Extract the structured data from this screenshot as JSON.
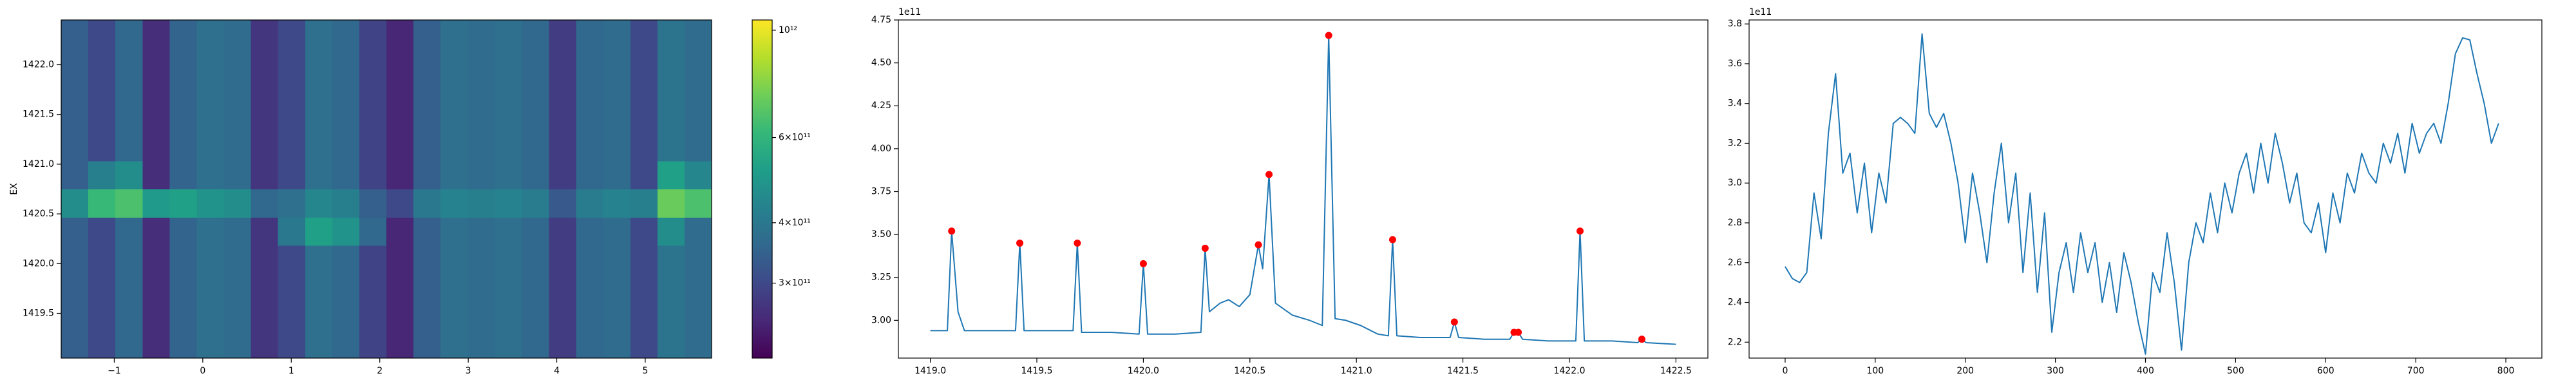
{
  "chart_data": [
    {
      "type": "heatmap",
      "ylabel": "EX",
      "xlim": [
        -1.6,
        5.75
      ],
      "ylim": [
        1419.05,
        1422.45
      ],
      "xticks": [
        {
          "value": -1,
          "label": "−1"
        },
        0,
        1,
        2,
        3,
        4,
        5
      ],
      "yticks": [
        1419.5,
        {
          "value": 1420,
          "label": "1420.0"
        },
        1420.5,
        {
          "value": 1421,
          "label": "1421.0"
        },
        1421.5,
        {
          "value": 1422,
          "label": "1422.0"
        }
      ],
      "colormap": [
        "#440154",
        "#482878",
        "#3e4989",
        "#31688e",
        "#26828e",
        "#1f9e89",
        "#35b779",
        "#6ece58",
        "#b5de2b",
        "#fde725"
      ],
      "colorbar": {
        "lim": [
          210000000000.0,
          1050000000000.0
        ],
        "scale": "log",
        "ticks": [
          {
            "value": 300000000000.0,
            "label": "3×10¹¹"
          },
          {
            "value": 400000000000.0,
            "label": "4×10¹¹"
          },
          {
            "value": 600000000000.0,
            "label": "6×10¹¹"
          },
          {
            "value": 1000000000000.0,
            "label": "10¹²"
          }
        ]
      },
      "z": [
        [
          340000000000.0,
          300000000000.0,
          360000000000.0,
          260000000000.0,
          350000000000.0,
          380000000000.0,
          370000000000.0,
          270000000000.0,
          300000000000.0,
          380000000000.0,
          360000000000.0,
          290000000000.0,
          250000000000.0,
          340000000000.0,
          380000000000.0,
          370000000000.0,
          380000000000.0,
          360000000000.0,
          280000000000.0,
          360000000000.0,
          370000000000.0,
          300000000000.0,
          390000000000.0,
          370000000000.0
        ],
        [
          340000000000.0,
          300000000000.0,
          360000000000.0,
          260000000000.0,
          350000000000.0,
          380000000000.0,
          370000000000.0,
          270000000000.0,
          300000000000.0,
          380000000000.0,
          360000000000.0,
          290000000000.0,
          250000000000.0,
          340000000000.0,
          380000000000.0,
          370000000000.0,
          380000000000.0,
          360000000000.0,
          280000000000.0,
          360000000000.0,
          370000000000.0,
          300000000000.0,
          390000000000.0,
          370000000000.0
        ],
        [
          340000000000.0,
          300000000000.0,
          360000000000.0,
          260000000000.0,
          350000000000.0,
          380000000000.0,
          370000000000.0,
          270000000000.0,
          300000000000.0,
          380000000000.0,
          360000000000.0,
          290000000000.0,
          250000000000.0,
          340000000000.0,
          380000000000.0,
          370000000000.0,
          380000000000.0,
          360000000000.0,
          280000000000.0,
          360000000000.0,
          370000000000.0,
          300000000000.0,
          390000000000.0,
          370000000000.0
        ],
        [
          340000000000.0,
          300000000000.0,
          360000000000.0,
          260000000000.0,
          350000000000.0,
          380000000000.0,
          370000000000.0,
          270000000000.0,
          300000000000.0,
          380000000000.0,
          360000000000.0,
          290000000000.0,
          250000000000.0,
          340000000000.0,
          380000000000.0,
          370000000000.0,
          380000000000.0,
          360000000000.0,
          280000000000.0,
          360000000000.0,
          370000000000.0,
          300000000000.0,
          390000000000.0,
          370000000000.0
        ],
        [
          340000000000.0,
          300000000000.0,
          360000000000.0,
          260000000000.0,
          350000000000.0,
          380000000000.0,
          370000000000.0,
          270000000000.0,
          400000000000.0,
          520000000000.0,
          480000000000.0,
          360000000000.0,
          250000000000.0,
          340000000000.0,
          380000000000.0,
          370000000000.0,
          380000000000.0,
          360000000000.0,
          280000000000.0,
          360000000000.0,
          370000000000.0,
          300000000000.0,
          460000000000.0,
          370000000000.0
        ],
        [
          460000000000.0,
          620000000000.0,
          660000000000.0,
          500000000000.0,
          520000000000.0,
          480000000000.0,
          460000000000.0,
          360000000000.0,
          380000000000.0,
          440000000000.0,
          420000000000.0,
          340000000000.0,
          300000000000.0,
          400000000000.0,
          430000000000.0,
          420000000000.0,
          430000000000.0,
          410000000000.0,
          330000000000.0,
          410000000000.0,
          430000000000.0,
          420000000000.0,
          720000000000.0,
          660000000000.0
        ],
        [
          340000000000.0,
          420000000000.0,
          460000000000.0,
          260000000000.0,
          350000000000.0,
          380000000000.0,
          370000000000.0,
          270000000000.0,
          300000000000.0,
          380000000000.0,
          360000000000.0,
          290000000000.0,
          250000000000.0,
          340000000000.0,
          380000000000.0,
          370000000000.0,
          380000000000.0,
          360000000000.0,
          280000000000.0,
          360000000000.0,
          370000000000.0,
          300000000000.0,
          520000000000.0,
          440000000000.0
        ],
        [
          340000000000.0,
          300000000000.0,
          360000000000.0,
          260000000000.0,
          350000000000.0,
          380000000000.0,
          370000000000.0,
          270000000000.0,
          300000000000.0,
          380000000000.0,
          360000000000.0,
          290000000000.0,
          250000000000.0,
          340000000000.0,
          380000000000.0,
          370000000000.0,
          380000000000.0,
          360000000000.0,
          280000000000.0,
          360000000000.0,
          370000000000.0,
          300000000000.0,
          390000000000.0,
          370000000000.0
        ],
        [
          340000000000.0,
          300000000000.0,
          360000000000.0,
          260000000000.0,
          350000000000.0,
          380000000000.0,
          370000000000.0,
          270000000000.0,
          300000000000.0,
          380000000000.0,
          360000000000.0,
          290000000000.0,
          250000000000.0,
          340000000000.0,
          380000000000.0,
          370000000000.0,
          380000000000.0,
          360000000000.0,
          280000000000.0,
          360000000000.0,
          370000000000.0,
          300000000000.0,
          390000000000.0,
          370000000000.0
        ],
        [
          340000000000.0,
          300000000000.0,
          360000000000.0,
          260000000000.0,
          350000000000.0,
          380000000000.0,
          370000000000.0,
          270000000000.0,
          300000000000.0,
          380000000000.0,
          360000000000.0,
          290000000000.0,
          250000000000.0,
          340000000000.0,
          380000000000.0,
          370000000000.0,
          380000000000.0,
          360000000000.0,
          280000000000.0,
          360000000000.0,
          370000000000.0,
          300000000000.0,
          390000000000.0,
          370000000000.0
        ],
        [
          340000000000.0,
          300000000000.0,
          360000000000.0,
          260000000000.0,
          350000000000.0,
          380000000000.0,
          370000000000.0,
          270000000000.0,
          300000000000.0,
          380000000000.0,
          360000000000.0,
          290000000000.0,
          250000000000.0,
          340000000000.0,
          380000000000.0,
          370000000000.0,
          380000000000.0,
          360000000000.0,
          280000000000.0,
          360000000000.0,
          370000000000.0,
          300000000000.0,
          390000000000.0,
          370000000000.0
        ],
        [
          340000000000.0,
          300000000000.0,
          360000000000.0,
          260000000000.0,
          350000000000.0,
          380000000000.0,
          370000000000.0,
          270000000000.0,
          300000000000.0,
          380000000000.0,
          360000000000.0,
          290000000000.0,
          250000000000.0,
          340000000000.0,
          380000000000.0,
          370000000000.0,
          380000000000.0,
          360000000000.0,
          280000000000.0,
          360000000000.0,
          370000000000.0,
          300000000000.0,
          390000000000.0,
          370000000000.0
        ]
      ]
    },
    {
      "type": "line",
      "y_offset_text": "1e11",
      "xlim": [
        1418.85,
        1422.65
      ],
      "ylim": [
        2.78,
        4.75
      ],
      "xticks": [
        {
          "value": 1419,
          "label": "1419.0"
        },
        1419.5,
        {
          "value": 1420,
          "label": "1420.0"
        },
        1420.5,
        {
          "value": 1421,
          "label": "1421.0"
        },
        1421.5,
        {
          "value": 1422,
          "label": "1422.0"
        },
        1422.5
      ],
      "yticks": [
        {
          "value": 3,
          "label": "3.00"
        },
        3.25,
        {
          "value": 3.5,
          "label": "3.50"
        },
        3.75,
        {
          "value": 4,
          "label": "4.00"
        },
        4.25,
        {
          "value": 4.5,
          "label": "4.50"
        },
        4.75
      ],
      "series": [
        {
          "type": "line",
          "color": "#1f77b4",
          "x": [
            1419.0,
            1419.08,
            1419.1,
            1419.13,
            1419.16,
            1419.3,
            1419.4,
            1419.42,
            1419.44,
            1419.6,
            1419.67,
            1419.69,
            1419.71,
            1419.85,
            1419.98,
            1420.0,
            1420.02,
            1420.15,
            1420.27,
            1420.29,
            1420.31,
            1420.36,
            1420.4,
            1420.45,
            1420.5,
            1420.54,
            1420.56,
            1420.59,
            1420.62,
            1420.7,
            1420.78,
            1420.84,
            1420.87,
            1420.9,
            1420.95,
            1421.02,
            1421.1,
            1421.15,
            1421.17,
            1421.19,
            1421.3,
            1421.44,
            1421.46,
            1421.48,
            1421.6,
            1421.72,
            1421.74,
            1421.76,
            1421.78,
            1421.9,
            1422.03,
            1422.05,
            1422.07,
            1422.2,
            1422.32,
            1422.34,
            1422.36,
            1422.5
          ],
          "values": [
            2.94,
            2.94,
            3.52,
            3.05,
            2.94,
            2.94,
            2.94,
            3.45,
            2.94,
            2.94,
            2.94,
            3.45,
            2.93,
            2.93,
            2.92,
            3.33,
            2.92,
            2.92,
            2.93,
            3.42,
            3.05,
            3.1,
            3.12,
            3.08,
            3.15,
            3.44,
            3.3,
            3.85,
            3.1,
            3.03,
            3.0,
            2.97,
            4.66,
            3.01,
            3.0,
            2.97,
            2.92,
            2.91,
            3.47,
            2.91,
            2.9,
            2.9,
            2.99,
            2.9,
            2.89,
            2.89,
            2.93,
            2.93,
            2.89,
            2.88,
            2.88,
            3.52,
            2.88,
            2.88,
            2.87,
            2.89,
            2.87,
            2.86
          ]
        },
        {
          "type": "scatter",
          "color": "#ff0000",
          "x": [
            1419.1,
            1419.42,
            1419.69,
            1420.0,
            1420.29,
            1420.54,
            1420.59,
            1420.87,
            1421.17,
            1421.46,
            1421.74,
            1421.76,
            1422.05,
            1422.34
          ],
          "values": [
            3.52,
            3.45,
            3.45,
            3.33,
            3.42,
            3.44,
            3.85,
            4.66,
            3.47,
            2.99,
            2.93,
            2.93,
            3.52,
            2.89
          ]
        }
      ]
    },
    {
      "type": "line",
      "y_offset_text": "1e11",
      "xlim": [
        -40,
        840
      ],
      "ylim": [
        2.12,
        3.82
      ],
      "xticks": [
        0,
        100,
        200,
        300,
        400,
        500,
        600,
        700,
        800
      ],
      "yticks": [
        2.2,
        2.4,
        2.6,
        2.8,
        {
          "value": 3,
          "label": "3.0"
        },
        3.2,
        3.4,
        3.6,
        3.8
      ],
      "series": [
        {
          "type": "line",
          "color": "#1f77b4",
          "x": [
            0,
            8,
            16,
            24,
            32,
            40,
            48,
            56,
            64,
            72,
            80,
            88,
            96,
            104,
            112,
            120,
            128,
            136,
            144,
            152,
            160,
            168,
            176,
            184,
            192,
            200,
            208,
            216,
            224,
            232,
            240,
            248,
            256,
            264,
            272,
            280,
            288,
            296,
            304,
            312,
            320,
            328,
            336,
            344,
            352,
            360,
            368,
            376,
            384,
            392,
            400,
            408,
            416,
            424,
            432,
            440,
            448,
            456,
            464,
            472,
            480,
            488,
            496,
            504,
            512,
            520,
            528,
            536,
            544,
            552,
            560,
            568,
            576,
            584,
            592,
            600,
            608,
            616,
            624,
            632,
            640,
            648,
            656,
            664,
            672,
            680,
            688,
            696,
            704,
            712,
            720,
            728,
            736,
            744,
            752,
            760,
            768,
            776,
            784,
            792
          ],
          "values": [
            2.58,
            2.52,
            2.5,
            2.55,
            2.95,
            2.72,
            3.25,
            3.55,
            3.05,
            3.15,
            2.85,
            3.1,
            2.75,
            3.05,
            2.9,
            3.3,
            3.33,
            3.3,
            3.25,
            3.75,
            3.35,
            3.28,
            3.35,
            3.2,
            3.0,
            2.7,
            3.05,
            2.85,
            2.6,
            2.95,
            3.2,
            2.8,
            3.05,
            2.55,
            2.95,
            2.45,
            2.85,
            2.25,
            2.55,
            2.7,
            2.45,
            2.75,
            2.55,
            2.7,
            2.4,
            2.6,
            2.35,
            2.65,
            2.5,
            2.3,
            2.14,
            2.55,
            2.45,
            2.75,
            2.5,
            2.16,
            2.6,
            2.8,
            2.7,
            2.95,
            2.75,
            3.0,
            2.85,
            3.05,
            3.15,
            2.95,
            3.2,
            3.0,
            3.25,
            3.1,
            2.9,
            3.05,
            2.8,
            2.75,
            2.9,
            2.65,
            2.95,
            2.8,
            3.05,
            2.95,
            3.15,
            3.05,
            3.0,
            3.2,
            3.1,
            3.25,
            3.05,
            3.3,
            3.15,
            3.25,
            3.3,
            3.2,
            3.4,
            3.65,
            3.73,
            3.72,
            3.55,
            3.4,
            3.2,
            3.3
          ]
        }
      ]
    }
  ]
}
